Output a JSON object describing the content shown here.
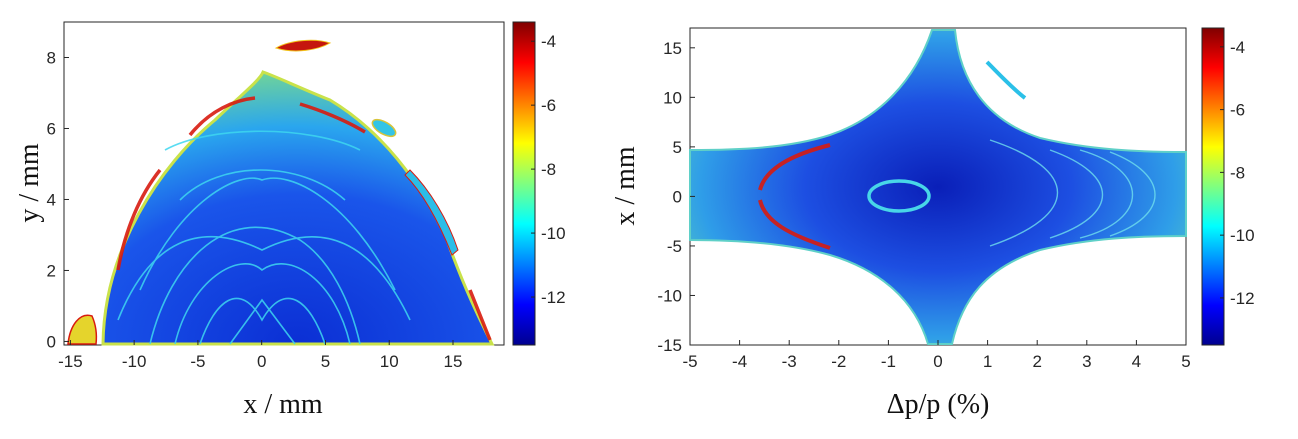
{
  "chart_data": [
    {
      "type": "heatmap",
      "title": "",
      "xlabel": "x / mm",
      "ylabel": "y / mm",
      "xlim": [
        -15.5,
        19
      ],
      "ylim": [
        -0.1,
        9
      ],
      "x_ticks": [
        -15,
        -10,
        -5,
        0,
        5,
        10,
        15
      ],
      "y_ticks": [
        0,
        2,
        4,
        6,
        8
      ],
      "colorbar": {
        "ticks": [
          -4,
          -6,
          -8,
          -10,
          -12
        ],
        "range": [
          -13.5,
          -3.4
        ],
        "colormap": "jet"
      },
      "grid": false,
      "description_shape": "dynamic aperture: arch-shaped region bounded by about x=-13 to 17 mm, peak y about 7.6 mm; blue core, cyan resonance arcs, red edge"
    },
    {
      "type": "heatmap",
      "title": "",
      "xlabel": "Δp/p (%)",
      "ylabel": "x / mm",
      "xlim": [
        -5,
        5
      ],
      "ylim": [
        -15,
        17
      ],
      "x_ticks": [
        -5,
        -4,
        -3,
        -2,
        -1,
        0,
        1,
        2,
        3,
        4,
        5
      ],
      "y_ticks": [
        15,
        10,
        5,
        0,
        -5,
        -10,
        -15
      ],
      "colorbar": {
        "ticks": [
          -4,
          -6,
          -8,
          -10,
          -12
        ],
        "range": [
          -13.5,
          -3.4
        ],
        "colormap": "jet"
      },
      "grid": false
    }
  ],
  "colors": {
    "core": "#0a2fd0",
    "mid": "#2fb8f0",
    "edge": "#d81b10",
    "warm": "#f5d21a"
  }
}
